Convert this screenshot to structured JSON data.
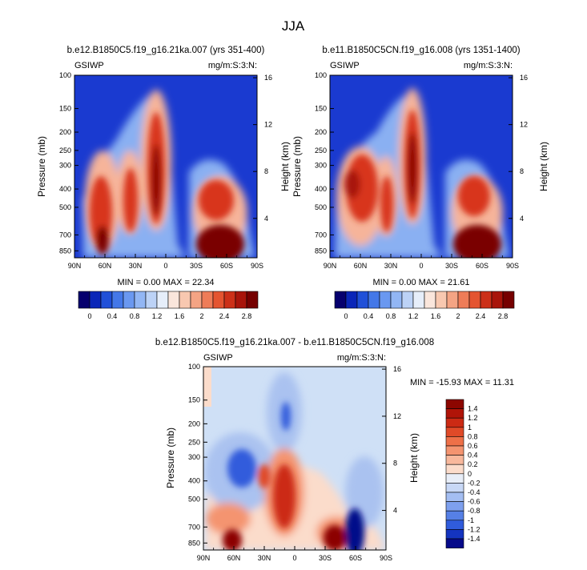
{
  "figure": {
    "season_title": "JJA"
  },
  "chart_data": [
    {
      "type": "heatmap",
      "title": "b.e12.B1850C5.f19_g16.21ka.007 (yrs 351-400)",
      "left_label": "GSIWP",
      "right_label": "mg/m:S:3:N:",
      "ylabel": "Pressure (mb)",
      "ylabel_right": "Height (km)",
      "x_ticks": [
        "90N",
        "60N",
        "30N",
        "0",
        "30S",
        "60S",
        "90S"
      ],
      "y_ticks": [
        "100",
        "150",
        "200",
        "250",
        "300",
        "400",
        "500",
        "700",
        "850"
      ],
      "y_ticks_right": [
        "16",
        "12",
        "8",
        "4"
      ],
      "stats_text": "MIN =  0.00   MAX = 22.34",
      "min": 0.0,
      "max": 22.34,
      "xlim": [
        90,
        -90
      ],
      "ylim": [
        925,
        100
      ],
      "features": [
        {
          "lat": 59,
          "p": 560,
          "value": 2.6
        },
        {
          "lat": 30,
          "p": 430,
          "value": 2.1
        },
        {
          "lat": 8,
          "p": 320,
          "value": 2.9
        },
        {
          "lat": -45,
          "p": 500,
          "value": 2.2
        },
        {
          "lat": -50,
          "p": 830,
          "value": 3.0
        }
      ]
    },
    {
      "type": "heatmap",
      "title": "b.e11.B1850C5CN.f19_g16.008 (yrs 1351-1400)",
      "left_label": "GSIWP",
      "right_label": "mg/m:S:3:N:",
      "ylabel": "Pressure (mb)",
      "ylabel_right": "Height (km)",
      "x_ticks": [
        "90N",
        "60N",
        "30N",
        "0",
        "30S",
        "60S",
        "90S"
      ],
      "y_ticks": [
        "100",
        "150",
        "200",
        "250",
        "300",
        "400",
        "500",
        "700",
        "850"
      ],
      "y_ticks_right": [
        "16",
        "12",
        "8",
        "4"
      ],
      "stats_text": "MIN =  0.00   MAX = 21.61",
      "min": 0.0,
      "max": 21.61,
      "xlim": [
        90,
        -90
      ],
      "ylim": [
        925,
        100
      ],
      "features": [
        {
          "lat": 55,
          "p": 420,
          "value": 2.7
        },
        {
          "lat": 28,
          "p": 430,
          "value": 2.2
        },
        {
          "lat": 8,
          "p": 300,
          "value": 2.9
        },
        {
          "lat": -45,
          "p": 450,
          "value": 2.2
        },
        {
          "lat": -50,
          "p": 840,
          "value": 3.0
        }
      ]
    },
    {
      "type": "heatmap",
      "title": "b.e12.B1850C5.f19_g16.21ka.007 - b.e11.B1850C5CN.f19_g16.008",
      "left_label": "GSIWP",
      "right_label": "mg/m:S:3:N:",
      "ylabel": "Pressure (mb)",
      "ylabel_right": "Height (km)",
      "x_ticks": [
        "90N",
        "60N",
        "30N",
        "0",
        "30S",
        "60S",
        "90S"
      ],
      "y_ticks": [
        "100",
        "150",
        "200",
        "250",
        "300",
        "400",
        "500",
        "700",
        "850"
      ],
      "y_ticks_right": [
        "16",
        "12",
        "8",
        "4"
      ],
      "stats_text": "MIN = -15.93   MAX = 11.31",
      "min": -15.93,
      "max": 11.31,
      "xlim": [
        90,
        -90
      ],
      "ylim": [
        925,
        100
      ],
      "features": [
        {
          "lat": 45,
          "p": 330,
          "value": -1.2
        },
        {
          "lat": 12,
          "p": 210,
          "value": -0.8
        },
        {
          "lat": 20,
          "p": 400,
          "value": 1.3
        },
        {
          "lat": 50,
          "p": 840,
          "value": 1.5
        },
        {
          "lat": -38,
          "p": 800,
          "value": 1.5
        },
        {
          "lat": -58,
          "p": 780,
          "value": -1.5
        }
      ]
    }
  ],
  "colorbars": {
    "horizontal_labels": [
      "0",
      "0.4",
      "0.8",
      "1.2",
      "1.6",
      "2",
      "2.4",
      "2.8"
    ],
    "horizontal_colors": [
      "#06006e",
      "#0a26b8",
      "#2050d8",
      "#4478e8",
      "#6a98f0",
      "#92b6f4",
      "#bcd2f6",
      "#e6eefa",
      "#fae6dc",
      "#f8c8b0",
      "#f4a484",
      "#ee7c58",
      "#e45430",
      "#cc3018",
      "#a8140a",
      "#760000"
    ],
    "vertical_labels": [
      "1.4",
      "1.2",
      "1",
      "0.8",
      "0.6",
      "0.4",
      "0.2",
      "0",
      "-0.2",
      "-0.4",
      "-0.6",
      "-0.8",
      "-1",
      "-1.2",
      "-1.4"
    ],
    "vertical_colors": [
      "#8c0600",
      "#b01408",
      "#cc2a14",
      "#e04a28",
      "#ee7048",
      "#f49470",
      "#f8b89c",
      "#fbdccb",
      "#e8eef8",
      "#c8d8f6",
      "#a4bef2",
      "#7ea0ee",
      "#5680e6",
      "#305cdc",
      "#1434c0",
      "#060a8a"
    ]
  },
  "colors": {
    "background_low": "#1a3ad0"
  }
}
